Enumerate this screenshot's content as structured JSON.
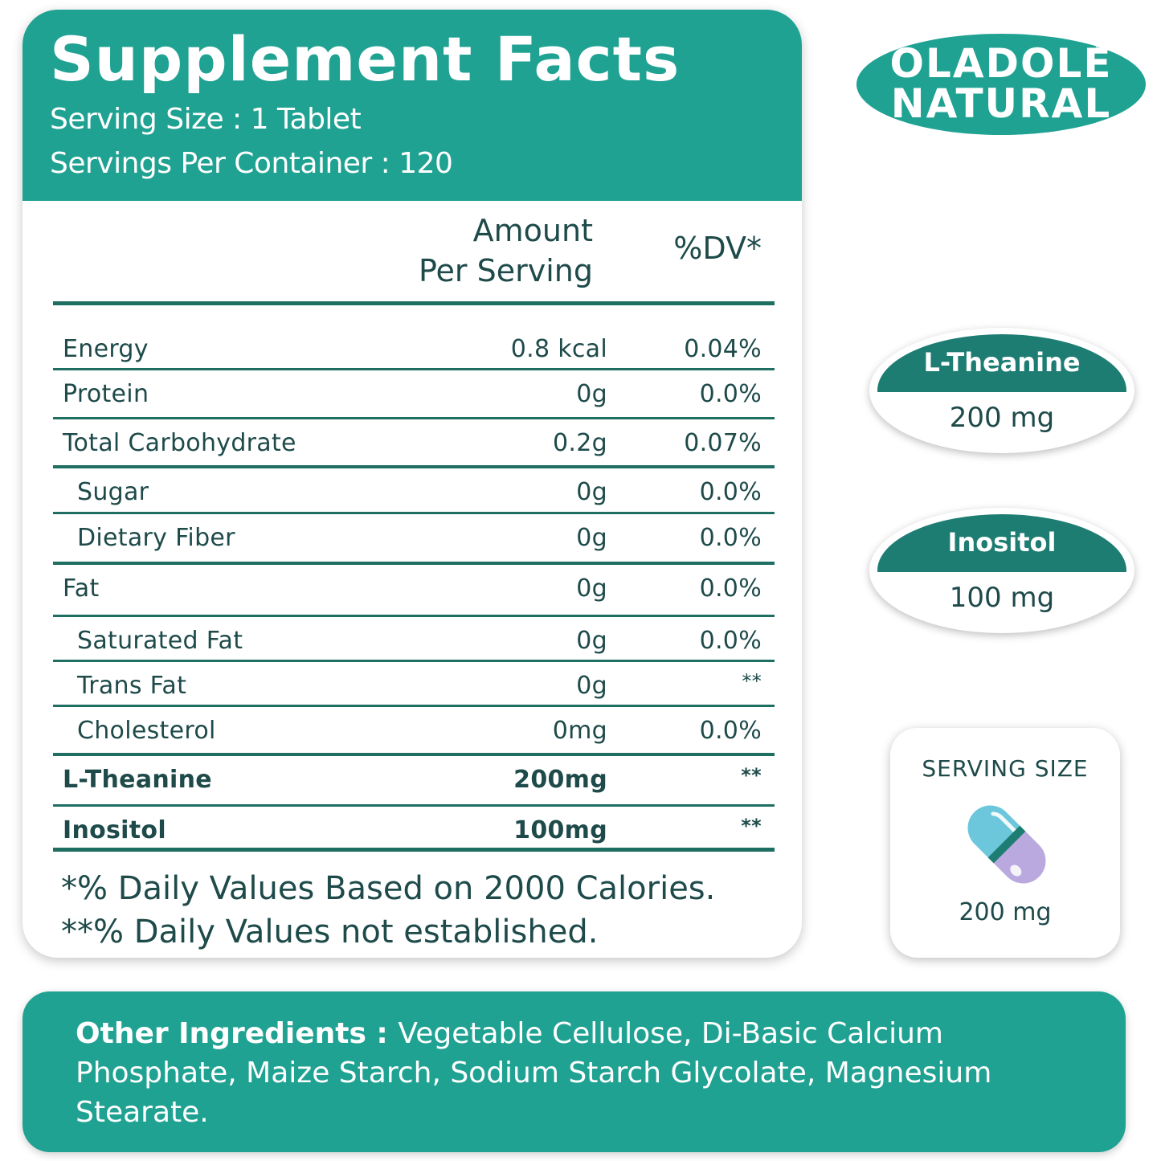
{
  "facts": {
    "title": "Supplement Facts",
    "serving_size": "Serving Size : 1 Tablet",
    "servings_per_container": "Servings Per Container : 120",
    "col_amount_line1": "Amount",
    "col_amount_line2": "Per Serving",
    "col_dv": "%DV*",
    "rows": [
      {
        "name": "Energy",
        "amount": "0.8 kcal",
        "dv": "0.04%"
      },
      {
        "name": "Protein",
        "amount": "0g",
        "dv": "0.0%"
      },
      {
        "name": "Total Carbohydrate",
        "amount": "0.2g",
        "dv": "0.07%"
      },
      {
        "name": "Sugar",
        "amount": "0g",
        "dv": "0.0%"
      },
      {
        "name": "Dietary Fiber",
        "amount": "0g",
        "dv": "0.0%"
      },
      {
        "name": "Fat",
        "amount": "0g",
        "dv": "0.0%"
      },
      {
        "name": "Saturated Fat",
        "amount": "0g",
        "dv": "0.0%"
      },
      {
        "name": "Trans Fat",
        "amount": "0g",
        "dv": "**"
      },
      {
        "name": "Cholesterol",
        "amount": "0mg",
        "dv": "0.0%"
      },
      {
        "name": "L-Theanine",
        "amount": "200mg",
        "dv": "**"
      },
      {
        "name": "Inositol",
        "amount": "100mg",
        "dv": "**"
      }
    ],
    "footnote1": "*% Daily Values Based on 2000 Calories.",
    "footnote2": "**% Daily Values not established."
  },
  "logo": {
    "line1": "OLADOLE",
    "line2": "NATURAL",
    "registered": "®"
  },
  "badges": [
    {
      "label": "L-Theanine",
      "value": "200 mg"
    },
    {
      "label": "Inositol",
      "value": "100 mg"
    }
  ],
  "serving_card": {
    "title": "SERVING SIZE",
    "icon": "capsule-icon",
    "value": "200 mg"
  },
  "ingredients": {
    "label": "Other Ingredients : ",
    "text": "Vegetable Cellulose, Di-Basic Calcium Phosphate, Maize Starch, Sodium Starch Glycolate, Magnesium Stearate."
  },
  "colors": {
    "brand_teal": "#20a293",
    "dark_teal": "#1e7d72",
    "text_dark": "#1e4a4a",
    "capsule_blue": "#6cc7dd",
    "capsule_purple": "#b9a9df"
  }
}
